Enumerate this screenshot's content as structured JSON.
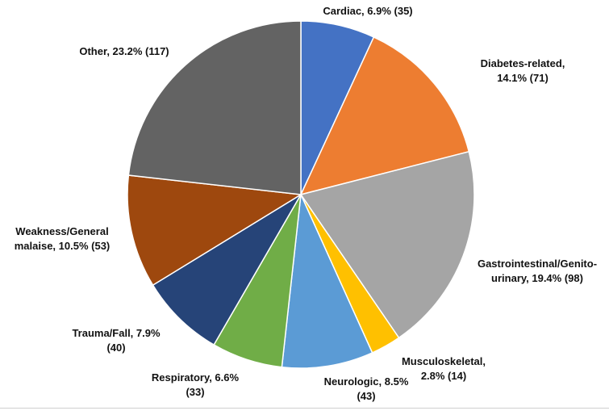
{
  "chart_data": {
    "type": "pie",
    "title": "",
    "unit": "%",
    "slices": [
      {
        "name": "Cardiac",
        "percent": 6.9,
        "count": 35,
        "color": "#4472C4",
        "label_lines": [
          "Cardiac, 6.9% (35)"
        ]
      },
      {
        "name": "Diabetes-related",
        "percent": 14.1,
        "count": 71,
        "color": "#ED7D31",
        "label_lines": [
          "Diabetes-related,",
          "14.1% (71)"
        ]
      },
      {
        "name": "Gastrointestinal/Genito-urinary",
        "percent": 19.4,
        "count": 98,
        "color": "#A5A5A5",
        "label_lines": [
          "Gastrointestinal/Genito-",
          "urinary, 19.4% (98)"
        ]
      },
      {
        "name": "Musculoskeletal",
        "percent": 2.8,
        "count": 14,
        "color": "#FFC000",
        "label_lines": [
          "Musculoskeletal,",
          "2.8% (14)"
        ]
      },
      {
        "name": "Neurologic",
        "percent": 8.5,
        "count": 43,
        "color": "#5B9BD5",
        "label_lines": [
          "Neurologic, 8.5%",
          "(43)"
        ]
      },
      {
        "name": "Respiratory",
        "percent": 6.6,
        "count": 33,
        "color": "#70AD47",
        "label_lines": [
          "Respiratory, 6.6%",
          "(33)"
        ]
      },
      {
        "name": "Trauma/Fall",
        "percent": 7.9,
        "count": 40,
        "color": "#264478",
        "label_lines": [
          "Trauma/Fall, 7.9%",
          "(40)"
        ]
      },
      {
        "name": "Weakness/General malaise",
        "percent": 10.5,
        "count": 53,
        "color": "#9E480E",
        "label_lines": [
          "Weakness/General",
          "malaise, 10.5% (53)"
        ]
      },
      {
        "name": "Other",
        "percent": 23.2,
        "count": 117,
        "color": "#636363",
        "label_lines": [
          "Other, 23.2% (117)"
        ]
      }
    ]
  }
}
